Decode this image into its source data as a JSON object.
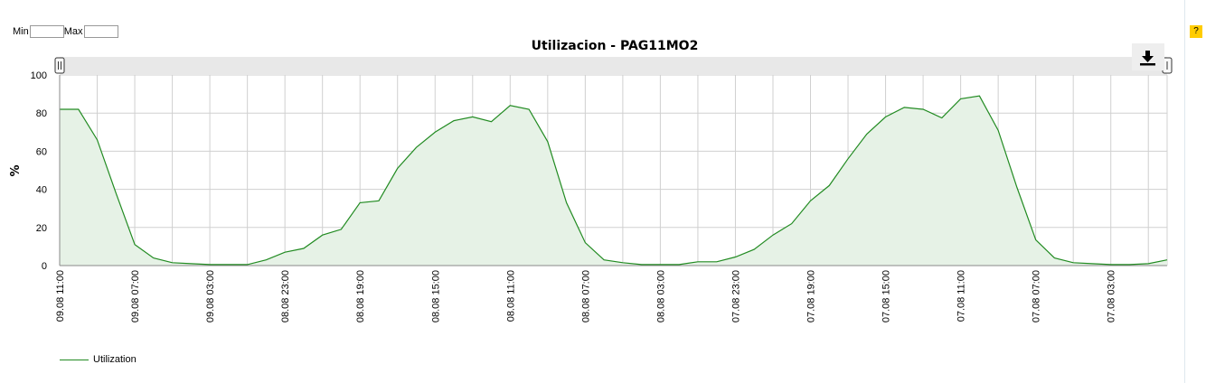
{
  "range": {
    "min_label": "Min",
    "max_label": "Max",
    "min_value": "",
    "max_value": ""
  },
  "help_label": "?",
  "colors": {
    "line": "#228b22",
    "fill": "#e6f2e6"
  },
  "chart_data": {
    "type": "area",
    "title": "Utilizacion - PAG11MO2",
    "ylabel": "%",
    "xlabel": "",
    "ylim": [
      0,
      100
    ],
    "yticks": [
      0,
      20,
      40,
      60,
      80,
      100
    ],
    "xticks": [
      "09.08 11:00",
      "09.08 07:00",
      "09.08 03:00",
      "08.08 23:00",
      "08.08 19:00",
      "08.08 15:00",
      "08.08 11:00",
      "08.08 07:00",
      "08.08 03:00",
      "07.08 23:00",
      "07.08 19:00",
      "07.08 15:00",
      "07.08 11:00",
      "07.08 07:00",
      "07.08 03:00"
    ],
    "grid": true,
    "legend_position": "bottom-left",
    "series": [
      {
        "name": "Utilization",
        "values": [
          82,
          82,
          66,
          38,
          11,
          4,
          1.5,
          1,
          0.5,
          0.5,
          0.5,
          3,
          7,
          9,
          16,
          19,
          33,
          34,
          51,
          62,
          70,
          76,
          78,
          75.5,
          84,
          82,
          65,
          33,
          12,
          3,
          1.5,
          0.5,
          0.5,
          0.5,
          2,
          2,
          4.5,
          8.5,
          16,
          22,
          34,
          42,
          56,
          69,
          78,
          83,
          82,
          77.5,
          87.5,
          89,
          71,
          41,
          13.5,
          4,
          1.5,
          1,
          0.5,
          0.5,
          1,
          3
        ]
      }
    ]
  }
}
